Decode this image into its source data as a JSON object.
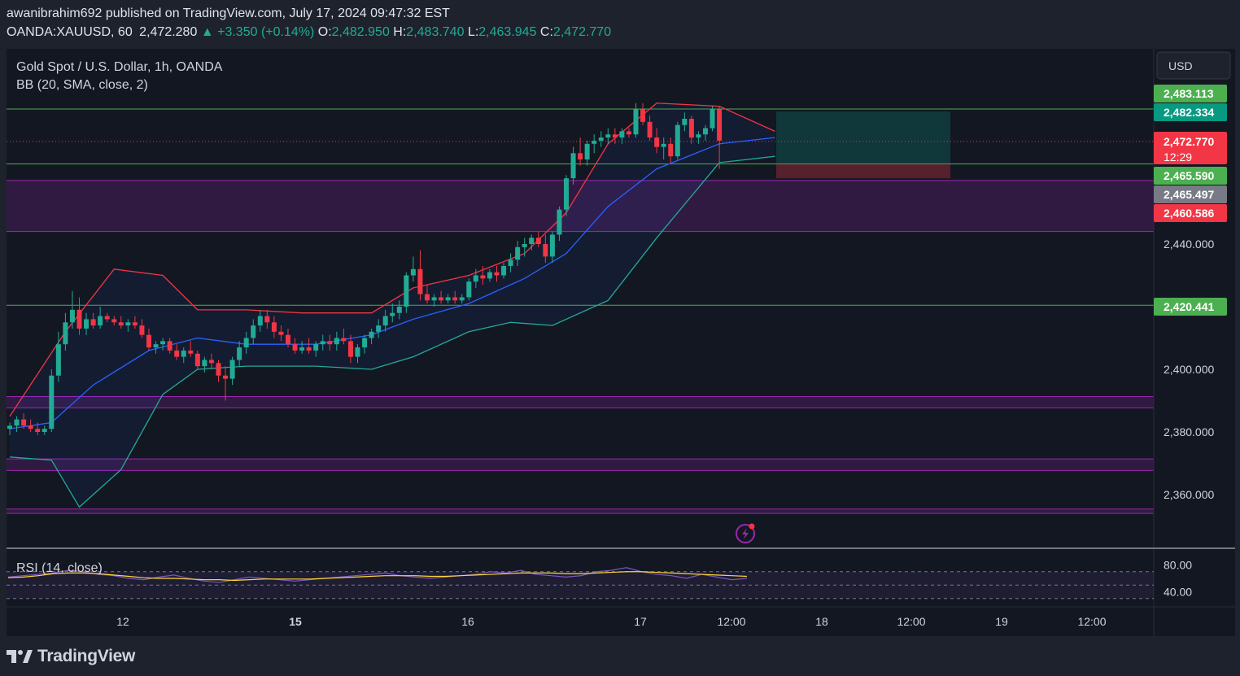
{
  "header": {
    "published_by": "awanibrahim692 published on TradingView.com, July 17, 2024 09:47:32 EST",
    "symbol": "OANDA:XAUUSD, 60",
    "last": "2,472.280",
    "change_arrow": "▲",
    "change": "+3.350 (+0.14%)",
    "o_label": "O:",
    "o": "2,482.950",
    "h_label": "H:",
    "h": "2,483.740",
    "l_label": "L:",
    "l": "2,463.945",
    "c_label": "C:",
    "c": "2,472.770"
  },
  "legend": {
    "title": "Gold Spot / U.S. Dollar, 1h, OANDA",
    "indicator": "BB (20, SMA, close, 2)",
    "rsi": "RSI (14, close)"
  },
  "currency_button": "USD",
  "price_badges": [
    {
      "text": "2,483.113",
      "color": "#4caf50"
    },
    {
      "text": "2,482.334",
      "color": "#089981"
    },
    {
      "text": "2,472.770",
      "sub": "12:29",
      "color": "#f23645"
    },
    {
      "text": "2,465.590",
      "color": "#4caf50"
    },
    {
      "text": "2,465.497",
      "color": "#787b86"
    },
    {
      "text": "2,460.586",
      "color": "#f23645"
    },
    {
      "text": "2,420.441",
      "color": "#4caf50"
    }
  ],
  "rsi_axis": [
    "80.00",
    "40.00"
  ],
  "footer": {
    "brand": "TradingView",
    "logo_icon": "tradingview-logo-icon",
    "alert_icon": "lightning-alert-icon"
  },
  "colors": {
    "up": "#22ab94",
    "down": "#f23645",
    "bb_upper": "#f23645",
    "bb_mid": "#2962ff",
    "bb_lower": "#22ab94",
    "zone": "#9c27b0",
    "level": "#4caf50",
    "rsi": "#7e57c2",
    "rsi_ma": "#fdd835"
  },
  "chart_data": {
    "type": "candlestick",
    "title": "Gold Spot / U.S. Dollar, 1h, OANDA",
    "y_ticks": [
      "2,440.000",
      "2,420.000",
      "2,400.000",
      "2,380.000",
      "2,360.000"
    ],
    "x_ticks": [
      "12",
      "15",
      "16",
      "17",
      "12:00",
      "18",
      "12:00",
      "19",
      "12:00"
    ],
    "ylim": [
      2350,
      2486
    ],
    "horizontal_levels": [
      2483.113,
      2465.59,
      2420.441
    ],
    "zones": [
      [
        2444,
        2460.3
      ],
      [
        2387.7,
        2391.3
      ],
      [
        2367.7,
        2371.4
      ],
      [
        2354.0,
        2355.4
      ]
    ],
    "position_box": {
      "entry": 2482.334,
      "target": 2465.59,
      "stop": 2486.5
    },
    "candles": [
      [
        2381,
        2383,
        2379,
        2382
      ],
      [
        2382,
        2385,
        2380,
        2384
      ],
      [
        2384,
        2386,
        2381,
        2382
      ],
      [
        2382,
        2384,
        2380,
        2381
      ],
      [
        2381,
        2383,
        2379,
        2380
      ],
      [
        2380,
        2382,
        2379,
        2381
      ],
      [
        2381,
        2400,
        2380,
        2398
      ],
      [
        2398,
        2412,
        2396,
        2408
      ],
      [
        2408,
        2418,
        2406,
        2415
      ],
      [
        2415,
        2425,
        2413,
        2419
      ],
      [
        2419,
        2423,
        2411,
        2413
      ],
      [
        2413,
        2418,
        2411,
        2416
      ],
      [
        2416,
        2418,
        2413,
        2414
      ],
      [
        2414,
        2420,
        2413,
        2417
      ],
      [
        2417,
        2418,
        2415,
        2416
      ],
      [
        2416,
        2417,
        2414,
        2415
      ],
      [
        2415,
        2417,
        2413,
        2414
      ],
      [
        2414,
        2416,
        2412,
        2415
      ],
      [
        2415,
        2417,
        2413,
        2414
      ],
      [
        2414,
        2416,
        2410,
        2411
      ],
      [
        2411,
        2413,
        2406,
        2407
      ],
      [
        2407,
        2409,
        2405,
        2408
      ],
      [
        2408,
        2410,
        2406,
        2409
      ],
      [
        2409,
        2410,
        2405,
        2406
      ],
      [
        2406,
        2408,
        2403,
        2404
      ],
      [
        2404,
        2407,
        2402,
        2406
      ],
      [
        2406,
        2409,
        2404,
        2405
      ],
      [
        2405,
        2406,
        2400,
        2401
      ],
      [
        2401,
        2404,
        2399,
        2403
      ],
      [
        2403,
        2405,
        2400,
        2402
      ],
      [
        2402,
        2403,
        2396,
        2398
      ],
      [
        2398,
        2401,
        2390,
        2397
      ],
      [
        2397,
        2404,
        2395,
        2403
      ],
      [
        2403,
        2409,
        2401,
        2407
      ],
      [
        2407,
        2412,
        2405,
        2410
      ],
      [
        2410,
        2416,
        2408,
        2414
      ],
      [
        2414,
        2419,
        2412,
        2417
      ],
      [
        2417,
        2419,
        2413,
        2415
      ],
      [
        2415,
        2417,
        2410,
        2412
      ],
      [
        2412,
        2414,
        2409,
        2411
      ],
      [
        2411,
        2413,
        2407,
        2408
      ],
      [
        2408,
        2410,
        2405,
        2406
      ],
      [
        2406,
        2409,
        2405,
        2407
      ],
      [
        2407,
        2410,
        2405,
        2406
      ],
      [
        2406,
        2409,
        2404,
        2408
      ],
      [
        2408,
        2411,
        2406,
        2409
      ],
      [
        2409,
        2411,
        2406,
        2408
      ],
      [
        2408,
        2412,
        2406,
        2410
      ],
      [
        2410,
        2413,
        2408,
        2409
      ],
      [
        2409,
        2411,
        2402,
        2404
      ],
      [
        2404,
        2408,
        2402,
        2407
      ],
      [
        2407,
        2411,
        2405,
        2410
      ],
      [
        2410,
        2413,
        2408,
        2412
      ],
      [
        2412,
        2416,
        2410,
        2414
      ],
      [
        2414,
        2419,
        2412,
        2417
      ],
      [
        2417,
        2421,
        2415,
        2418
      ],
      [
        2418,
        2422,
        2416,
        2420
      ],
      [
        2420,
        2431,
        2418,
        2430
      ],
      [
        2430,
        2436,
        2428,
        2432
      ],
      [
        2432,
        2438,
        2422,
        2424
      ],
      [
        2424,
        2427,
        2421,
        2422
      ],
      [
        2422,
        2424,
        2420,
        2423
      ],
      [
        2423,
        2425,
        2421,
        2422
      ],
      [
        2422,
        2424,
        2421,
        2423
      ],
      [
        2423,
        2425,
        2421,
        2422
      ],
      [
        2422,
        2424,
        2421,
        2423
      ],
      [
        2423,
        2429,
        2422,
        2428
      ],
      [
        2428,
        2432,
        2426,
        2430
      ],
      [
        2430,
        2433,
        2427,
        2429
      ],
      [
        2429,
        2432,
        2428,
        2431
      ],
      [
        2431,
        2433,
        2428,
        2430
      ],
      [
        2430,
        2434,
        2429,
        2433
      ],
      [
        2433,
        2437,
        2431,
        2435
      ],
      [
        2435,
        2441,
        2433,
        2439
      ],
      [
        2439,
        2442,
        2436,
        2440
      ],
      [
        2440,
        2443,
        2438,
        2442
      ],
      [
        2442,
        2444,
        2439,
        2440
      ],
      [
        2440,
        2443,
        2434,
        2436
      ],
      [
        2436,
        2444,
        2434,
        2443
      ],
      [
        2443,
        2452,
        2441,
        2451
      ],
      [
        2451,
        2462,
        2449,
        2461
      ],
      [
        2461,
        2471,
        2459,
        2469
      ],
      [
        2469,
        2474,
        2465,
        2467
      ],
      [
        2467,
        2473,
        2465,
        2472
      ],
      [
        2472,
        2475,
        2469,
        2473
      ],
      [
        2473,
        2476,
        2471,
        2474
      ],
      [
        2474,
        2477,
        2472,
        2475
      ],
      [
        2475,
        2477,
        2472,
        2474
      ],
      [
        2474,
        2477,
        2472,
        2476
      ],
      [
        2476,
        2477,
        2474,
        2475
      ],
      [
        2475,
        2485,
        2474,
        2483
      ],
      [
        2483,
        2485,
        2478,
        2479
      ],
      [
        2479,
        2481,
        2473,
        2474
      ],
      [
        2474,
        2477,
        2469,
        2471
      ],
      [
        2471,
        2474,
        2467,
        2472
      ],
      [
        2472,
        2474,
        2466,
        2468
      ],
      [
        2468,
        2479,
        2467,
        2478
      ],
      [
        2478,
        2482,
        2476,
        2480
      ],
      [
        2480,
        2481,
        2472,
        2474
      ],
      [
        2474,
        2476,
        2472,
        2475
      ],
      [
        2475,
        2478,
        2473,
        2477
      ],
      [
        2477,
        2484,
        2476,
        2483
      ],
      [
        2483,
        2484,
        2464,
        2473
      ]
    ],
    "bb": {
      "upper": [
        [
          0,
          2385
        ],
        [
          8,
          2412
        ],
        [
          15,
          2432
        ],
        [
          22,
          2430
        ],
        [
          27,
          2419
        ],
        [
          34,
          2419
        ],
        [
          42,
          2418
        ],
        [
          52,
          2418
        ],
        [
          58,
          2426
        ],
        [
          66,
          2430
        ],
        [
          74,
          2437
        ],
        [
          80,
          2450
        ],
        [
          86,
          2472
        ],
        [
          93,
          2485
        ],
        [
          102,
          2484
        ],
        [
          110,
          2476
        ]
      ],
      "mid": [
        [
          0,
          2381
        ],
        [
          6,
          2383
        ],
        [
          12,
          2395
        ],
        [
          20,
          2406
        ],
        [
          27,
          2410
        ],
        [
          34,
          2408
        ],
        [
          44,
          2408
        ],
        [
          52,
          2411
        ],
        [
          58,
          2416
        ],
        [
          66,
          2421
        ],
        [
          74,
          2429
        ],
        [
          80,
          2437
        ],
        [
          86,
          2452
        ],
        [
          93,
          2464
        ],
        [
          102,
          2472
        ],
        [
          110,
          2474
        ]
      ],
      "lower": [
        [
          0,
          2372
        ],
        [
          6,
          2371
        ],
        [
          10,
          2356
        ],
        [
          16,
          2368
        ],
        [
          22,
          2392
        ],
        [
          27,
          2400
        ],
        [
          34,
          2401
        ],
        [
          44,
          2401
        ],
        [
          52,
          2400
        ],
        [
          58,
          2404
        ],
        [
          66,
          2412
        ],
        [
          72,
          2415
        ],
        [
          78,
          2414
        ],
        [
          86,
          2422
        ],
        [
          93,
          2442
        ],
        [
          102,
          2466
        ],
        [
          110,
          2468
        ]
      ]
    },
    "rsi": {
      "ylim": [
        20,
        100
      ],
      "upper_band": 70,
      "lower_band": 30,
      "values": [
        62,
        64,
        66,
        68,
        72,
        70,
        66,
        64,
        60,
        58,
        62,
        65,
        60,
        56,
        54,
        58,
        62,
        60,
        58,
        56,
        58,
        60,
        62,
        64,
        66,
        68,
        64,
        62,
        60,
        62,
        64,
        66,
        70,
        68,
        72,
        66,
        64,
        62,
        64,
        70,
        72,
        76,
        70,
        66,
        64,
        60,
        66,
        62,
        58,
        60
      ],
      "ma": [
        61,
        62,
        64,
        67,
        68,
        68,
        67,
        65,
        63,
        61,
        60,
        60,
        59,
        58,
        58,
        57,
        58,
        59,
        59,
        59,
        59,
        60,
        61,
        62,
        63,
        64,
        64,
        64,
        63,
        63,
        64,
        65,
        66,
        67,
        68,
        68,
        68,
        67,
        67,
        68,
        69,
        70,
        70,
        69,
        68,
        67,
        66,
        65,
        64,
        63
      ]
    }
  }
}
